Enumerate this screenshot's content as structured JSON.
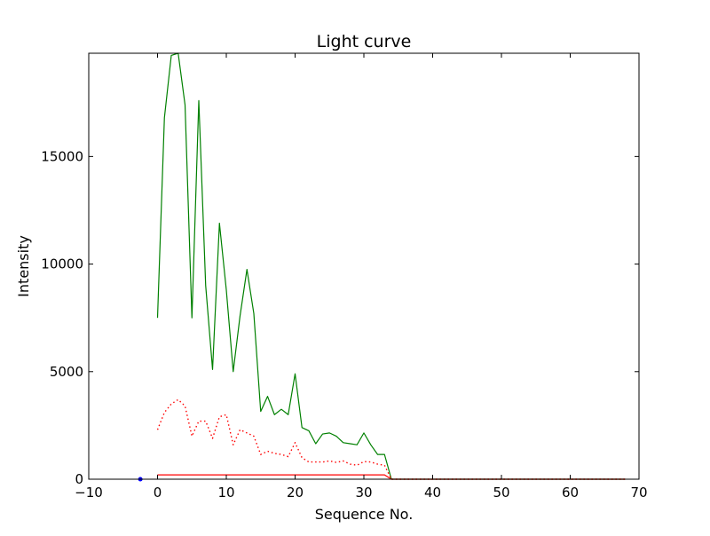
{
  "chart_data": {
    "type": "line",
    "title": "Light curve",
    "xlabel": "Sequence No.",
    "ylabel": "Intensity",
    "xlim": [
      -10,
      70
    ],
    "ylim": [
      0,
      19800
    ],
    "xticks": [
      -10,
      0,
      10,
      20,
      30,
      40,
      50,
      60,
      70
    ],
    "yticks": [
      0,
      5000,
      10000,
      15000
    ],
    "grid": false,
    "series": [
      {
        "color": "#008000",
        "style": "solid",
        "x": [
          0,
          1,
          2,
          3,
          4,
          5,
          6,
          7,
          8,
          9,
          10,
          11,
          12,
          13,
          14,
          15,
          16,
          17,
          18,
          19,
          20,
          21,
          22,
          23,
          24,
          25,
          26,
          27,
          28,
          29,
          30,
          31,
          32,
          33,
          34,
          35,
          36,
          37,
          38,
          39,
          40,
          41,
          42,
          43,
          44,
          45,
          46,
          47,
          48,
          49,
          50,
          51,
          52,
          53,
          54,
          55,
          56,
          57,
          58,
          59,
          60,
          61,
          62,
          63,
          64,
          65,
          66,
          67,
          68
        ],
        "y": [
          7500,
          16800,
          19700,
          19800,
          17400,
          7500,
          17600,
          9000,
          5100,
          11900,
          8800,
          5000,
          7600,
          9750,
          7700,
          3150,
          3850,
          3000,
          3250,
          3000,
          4900,
          2400,
          2250,
          1650,
          2100,
          2150,
          2000,
          1700,
          1650,
          1600,
          2150,
          1600,
          1150,
          1150,
          0,
          0,
          0,
          0,
          0,
          0,
          0,
          0,
          0,
          0,
          0,
          0,
          0,
          0,
          0,
          0,
          0,
          0,
          0,
          0,
          0,
          0,
          0,
          0,
          0,
          0,
          0,
          0,
          0,
          0,
          0,
          0,
          0,
          0,
          0
        ]
      },
      {
        "color": "#ff0000",
        "style": "dotted",
        "x": [
          0,
          1,
          2,
          3,
          4,
          5,
          6,
          7,
          8,
          9,
          10,
          11,
          12,
          13,
          14,
          15,
          16,
          17,
          18,
          19,
          20,
          21,
          22,
          23,
          24,
          25,
          26,
          27,
          28,
          29,
          30,
          31,
          32,
          33,
          34,
          35,
          36,
          37,
          38,
          39,
          40,
          41,
          42,
          43,
          44,
          45,
          46,
          47,
          48,
          49,
          50,
          51,
          52,
          53,
          54,
          55,
          56,
          57,
          58,
          59,
          60,
          61,
          62,
          63,
          64,
          65,
          66,
          67,
          68
        ],
        "y": [
          2300,
          3100,
          3500,
          3700,
          3400,
          2000,
          2700,
          2700,
          1900,
          2900,
          3000,
          1600,
          2300,
          2150,
          2000,
          1150,
          1300,
          1200,
          1150,
          1050,
          1700,
          1000,
          800,
          800,
          800,
          850,
          780,
          850,
          700,
          650,
          820,
          800,
          700,
          650,
          0,
          0,
          0,
          0,
          0,
          0,
          0,
          0,
          0,
          0,
          0,
          0,
          0,
          0,
          0,
          0,
          0,
          0,
          0,
          0,
          0,
          0,
          0,
          0,
          0,
          0,
          0,
          0,
          0,
          0,
          0,
          0,
          0,
          0,
          0
        ]
      },
      {
        "color": "#ff0000",
        "style": "solid",
        "x": [
          0,
          1,
          2,
          3,
          4,
          5,
          6,
          7,
          8,
          9,
          10,
          11,
          12,
          13,
          14,
          15,
          16,
          17,
          18,
          19,
          20,
          21,
          22,
          23,
          24,
          25,
          26,
          27,
          28,
          29,
          30,
          31,
          32,
          33,
          34,
          35,
          36,
          37,
          38,
          39,
          40,
          41,
          42,
          43,
          44,
          45,
          46,
          47,
          48,
          49,
          50,
          51,
          52,
          53,
          54,
          55,
          56,
          57,
          58,
          59,
          60,
          61,
          62,
          63,
          64,
          65,
          66,
          67,
          68
        ],
        "y": [
          200,
          200,
          200,
          200,
          200,
          200,
          200,
          200,
          200,
          200,
          200,
          200,
          200,
          200,
          200,
          200,
          200,
          200,
          200,
          200,
          200,
          200,
          200,
          200,
          200,
          200,
          200,
          200,
          200,
          200,
          200,
          200,
          200,
          200,
          0,
          0,
          0,
          0,
          0,
          0,
          0,
          0,
          0,
          0,
          0,
          0,
          0,
          0,
          0,
          0,
          0,
          0,
          0,
          0,
          0,
          0,
          0,
          0,
          0,
          0,
          0,
          0,
          0,
          0,
          0,
          0,
          0,
          0,
          0
        ]
      },
      {
        "color": "#0000ff",
        "style": "marker",
        "x": [
          -2.5
        ],
        "y": [
          0
        ]
      }
    ]
  }
}
